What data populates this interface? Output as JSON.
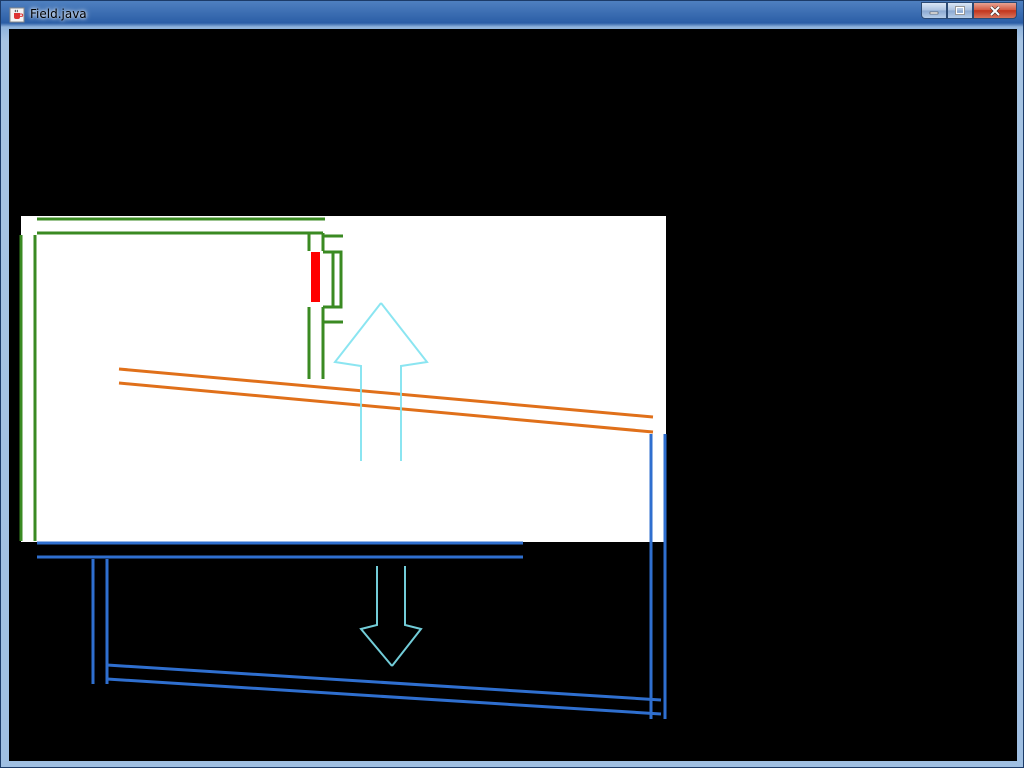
{
  "window": {
    "title": "Field.java"
  },
  "controls": {
    "minimize": "minimize",
    "maximize": "maximize",
    "close": "close"
  },
  "colors": {
    "background": "#000000",
    "panel": "#ffffff",
    "green_wall": "#3a8a22",
    "orange_rail": "#e0701a",
    "blue_wall": "#2f6fcf",
    "red_block": "#ff0000",
    "cyan_arrow": "#7fe3f0"
  }
}
